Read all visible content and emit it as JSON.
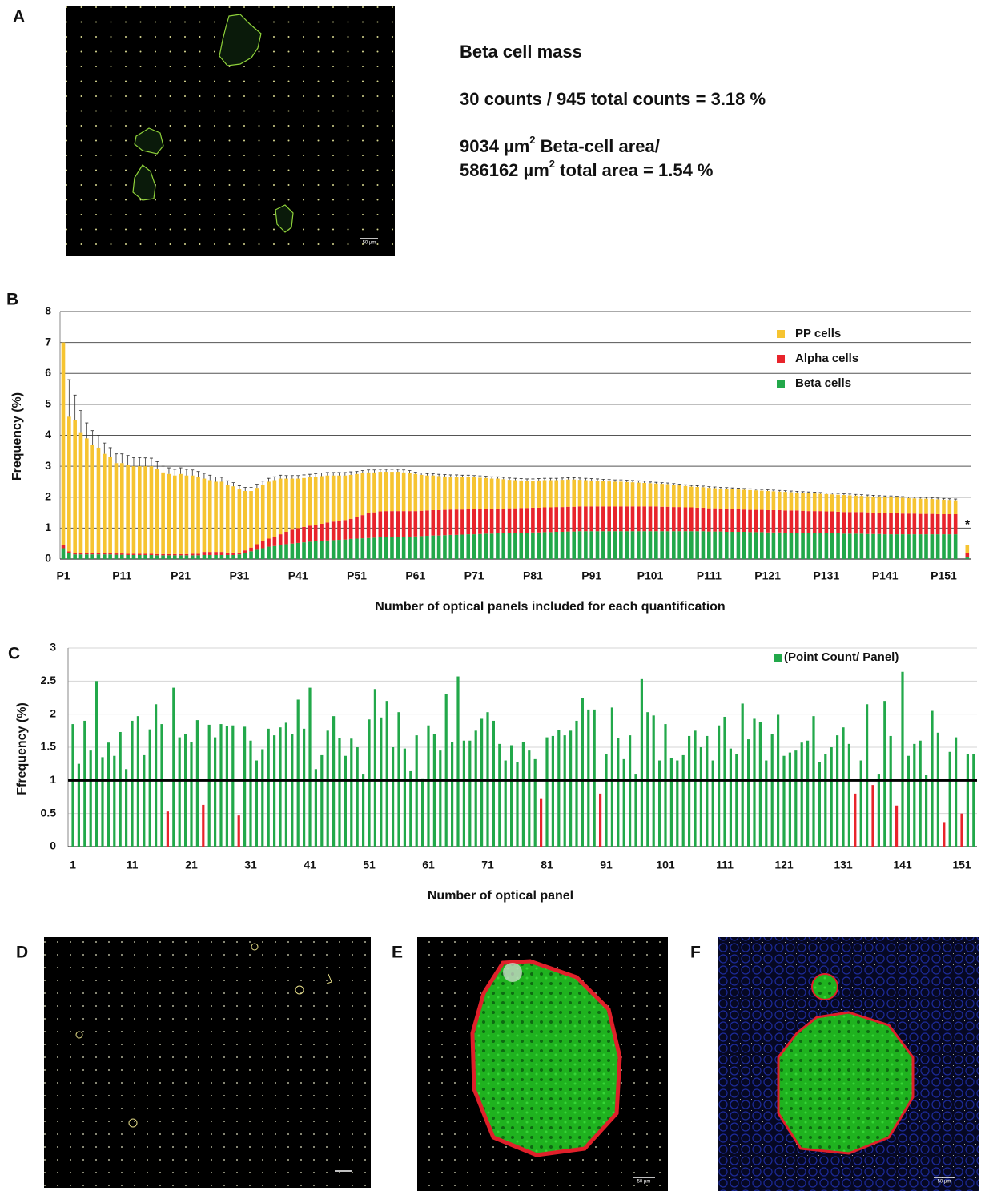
{
  "panel_labels": [
    "A",
    "B",
    "C",
    "D",
    "E",
    "F"
  ],
  "panel_a_text": {
    "heading": "Beta cell mass",
    "count_line": "30 counts / 945 total counts = 3.18 %",
    "area_line_1": {
      "before": "9034 µm",
      "sup": "2",
      "after": " Beta-cell area/"
    },
    "area_line_2": {
      "before": "586162 µm",
      "sup": "2",
      "after": " total area = 1.54 %"
    }
  },
  "scale_bar_label": "50 µm",
  "chart_data": [
    {
      "type": "bar",
      "stacked": true,
      "grid": true,
      "legend": "upper right",
      "ylabel": "Frequency (%)",
      "xlabel": "Number of optical panels included for each quantification",
      "annotation": "*",
      "ylim": [
        0,
        8
      ],
      "yticks": [
        0,
        1,
        2,
        3,
        4,
        5,
        6,
        7,
        8
      ],
      "categories": [
        "P1",
        null,
        null,
        null,
        null,
        null,
        null,
        null,
        null,
        null,
        "P11",
        null,
        null,
        null,
        null,
        null,
        null,
        null,
        null,
        null,
        "P21",
        null,
        null,
        null,
        null,
        null,
        null,
        null,
        null,
        null,
        "P31",
        null,
        null,
        null,
        null,
        null,
        null,
        null,
        null,
        null,
        "P41",
        null,
        null,
        null,
        null,
        null,
        null,
        null,
        null,
        null,
        "P51",
        null,
        null,
        null,
        null,
        null,
        null,
        null,
        null,
        null,
        "P61",
        null,
        null,
        null,
        null,
        null,
        null,
        null,
        null,
        null,
        "P71",
        null,
        null,
        null,
        null,
        null,
        null,
        null,
        null,
        null,
        "P81",
        null,
        null,
        null,
        null,
        null,
        null,
        null,
        null,
        null,
        "P91",
        null,
        null,
        null,
        null,
        null,
        null,
        null,
        null,
        null,
        "P101",
        null,
        null,
        null,
        null,
        null,
        null,
        null,
        null,
        null,
        "P111",
        null,
        null,
        null,
        null,
        null,
        null,
        null,
        null,
        null,
        "P121",
        null,
        null,
        null,
        null,
        null,
        null,
        null,
        null,
        null,
        "P131",
        null,
        null,
        null,
        null,
        null,
        null,
        null,
        null,
        null,
        "P141",
        null,
        null,
        null,
        null,
        null,
        null,
        null,
        null,
        null,
        "P151",
        null,
        null,
        null,
        null
      ],
      "series": [
        {
          "name": "Beta cells",
          "color": "#22a84a",
          "values": [
            0.35,
            0.2,
            0.15,
            0.15,
            0.15,
            0.15,
            0.15,
            0.15,
            0.15,
            0.14,
            0.14,
            0.13,
            0.13,
            0.13,
            0.13,
            0.13,
            0.12,
            0.12,
            0.12,
            0.12,
            0.12,
            0.12,
            0.12,
            0.12,
            0.13,
            0.13,
            0.13,
            0.13,
            0.13,
            0.13,
            0.15,
            0.2,
            0.25,
            0.3,
            0.35,
            0.4,
            0.42,
            0.45,
            0.48,
            0.5,
            0.52,
            0.54,
            0.56,
            0.57,
            0.58,
            0.6,
            0.61,
            0.62,
            0.63,
            0.65,
            0.66,
            0.67,
            0.68,
            0.69,
            0.7,
            0.7,
            0.71,
            0.71,
            0.72,
            0.72,
            0.73,
            0.74,
            0.75,
            0.76,
            0.76,
            0.77,
            0.78,
            0.78,
            0.79,
            0.8,
            0.8,
            0.81,
            0.82,
            0.82,
            0.83,
            0.83,
            0.84,
            0.84,
            0.85,
            0.85,
            0.86,
            0.86,
            0.87,
            0.87,
            0.88,
            0.88,
            0.89,
            0.89,
            0.9,
            0.9,
            0.9,
            0.9,
            0.9,
            0.9,
            0.9,
            0.9,
            0.9,
            0.9,
            0.9,
            0.9,
            0.9,
            0.9,
            0.9,
            0.9,
            0.9,
            0.9,
            0.9,
            0.9,
            0.9,
            0.9,
            0.89,
            0.89,
            0.89,
            0.88,
            0.88,
            0.88,
            0.88,
            0.87,
            0.87,
            0.87,
            0.86,
            0.86,
            0.86,
            0.85,
            0.85,
            0.85,
            0.85,
            0.84,
            0.84,
            0.84,
            0.83,
            0.83,
            0.83,
            0.82,
            0.82,
            0.82,
            0.82,
            0.81,
            0.81,
            0.81,
            0.8,
            0.8,
            0.8,
            0.8,
            0.8,
            0.8,
            0.8,
            0.8,
            0.8,
            0.8,
            0.8,
            0.8,
            0.8,
            null,
            0.05
          ]
        },
        {
          "name": "Alpha cells",
          "color": "#e8242b",
          "values": [
            0.1,
            0.05,
            0.04,
            0.04,
            0.04,
            0.04,
            0.04,
            0.04,
            0.04,
            0.04,
            0.04,
            0.04,
            0.04,
            0.04,
            0.04,
            0.04,
            0.04,
            0.04,
            0.04,
            0.04,
            0.04,
            0.04,
            0.05,
            0.05,
            0.1,
            0.1,
            0.1,
            0.1,
            0.08,
            0.08,
            0.06,
            0.08,
            0.12,
            0.18,
            0.22,
            0.26,
            0.3,
            0.35,
            0.4,
            0.45,
            0.48,
            0.5,
            0.52,
            0.54,
            0.56,
            0.58,
            0.6,
            0.62,
            0.63,
            0.65,
            0.7,
            0.75,
            0.8,
            0.82,
            0.84,
            0.85,
            0.84,
            0.84,
            0.83,
            0.83,
            0.82,
            0.82,
            0.82,
            0.82,
            0.82,
            0.82,
            0.82,
            0.82,
            0.81,
            0.81,
            0.81,
            0.81,
            0.8,
            0.8,
            0.8,
            0.8,
            0.8,
            0.8,
            0.8,
            0.8,
            0.8,
            0.8,
            0.8,
            0.8,
            0.8,
            0.8,
            0.8,
            0.8,
            0.8,
            0.8,
            0.8,
            0.8,
            0.8,
            0.8,
            0.8,
            0.8,
            0.8,
            0.8,
            0.8,
            0.8,
            0.8,
            0.8,
            0.79,
            0.79,
            0.78,
            0.78,
            0.77,
            0.77,
            0.76,
            0.76,
            0.75,
            0.75,
            0.74,
            0.74,
            0.73,
            0.73,
            0.72,
            0.72,
            0.72,
            0.72,
            0.72,
            0.72,
            0.72,
            0.72,
            0.72,
            0.72,
            0.71,
            0.71,
            0.71,
            0.71,
            0.71,
            0.71,
            0.7,
            0.7,
            0.7,
            0.7,
            0.7,
            0.7,
            0.69,
            0.69,
            0.68,
            0.68,
            0.68,
            0.67,
            0.67,
            0.67,
            0.66,
            0.66,
            0.66,
            0.65,
            0.65,
            0.65,
            0.65,
            null,
            0.15
          ]
        },
        {
          "name": "PP cells",
          "color": "#f6c431",
          "values": [
            6.55,
            4.35,
            4.31,
            3.91,
            3.71,
            3.51,
            3.41,
            3.21,
            3.11,
            2.92,
            2.92,
            2.88,
            2.83,
            2.83,
            2.83,
            2.83,
            2.74,
            2.64,
            2.59,
            2.54,
            2.59,
            2.54,
            2.53,
            2.48,
            2.37,
            2.32,
            2.27,
            2.27,
            2.19,
            2.14,
            2.04,
            1.92,
            1.83,
            1.82,
            1.83,
            1.84,
            1.83,
            1.8,
            1.72,
            1.65,
            1.6,
            1.58,
            1.56,
            1.55,
            1.54,
            1.52,
            1.49,
            1.46,
            1.44,
            1.42,
            1.39,
            1.36,
            1.32,
            1.29,
            1.28,
            1.27,
            1.27,
            1.27,
            1.25,
            1.23,
            1.2,
            1.16,
            1.13,
            1.12,
            1.1,
            1.08,
            1.06,
            1.06,
            1.05,
            1.04,
            1.03,
            1.01,
            1.0,
            0.98,
            0.97,
            0.95,
            0.92,
            0.91,
            0.89,
            0.88,
            0.87,
            0.88,
            0.88,
            0.88,
            0.87,
            0.88,
            0.88,
            0.88,
            0.86,
            0.85,
            0.84,
            0.83,
            0.82,
            0.81,
            0.8,
            0.8,
            0.79,
            0.78,
            0.77,
            0.76,
            0.75,
            0.74,
            0.74,
            0.73,
            0.72,
            0.7,
            0.69,
            0.67,
            0.67,
            0.66,
            0.66,
            0.65,
            0.65,
            0.65,
            0.65,
            0.64,
            0.64,
            0.64,
            0.63,
            0.62,
            0.62,
            0.61,
            0.6,
            0.6,
            0.59,
            0.58,
            0.58,
            0.58,
            0.57,
            0.56,
            0.56,
            0.55,
            0.55,
            0.55,
            0.54,
            0.53,
            0.52,
            0.52,
            0.52,
            0.51,
            0.52,
            0.52,
            0.51,
            0.51,
            0.5,
            0.49,
            0.49,
            0.49,
            0.48,
            0.48,
            0.47,
            0.46,
            0.45,
            null,
            0.25
          ],
          "errors": [
            null,
            1.2,
            0.8,
            0.7,
            0.5,
            0.45,
            0.4,
            0.35,
            0.3,
            0.3,
            0.3,
            0.3,
            0.28,
            0.28,
            0.27,
            0.26,
            0.25,
            0.2,
            0.2,
            0.2,
            0.2,
            0.2,
            0.18,
            0.18,
            0.17,
            0.16,
            0.15,
            0.14,
            0.13,
            0.12,
            0.12,
            0.12,
            0.12,
            0.12,
            0.12,
            0.11,
            0.11,
            0.11,
            0.1,
            0.1,
            0.1,
            0.1,
            0.1,
            0.1,
            0.1,
            0.1,
            0.1,
            0.1,
            0.1,
            0.1,
            0.08,
            0.08,
            0.08,
            0.08,
            0.08,
            0.08,
            0.08,
            0.08,
            0.08,
            0.08,
            0.06,
            0.06,
            0.06,
            0.06,
            0.06,
            0.06,
            0.06,
            0.06,
            0.06,
            0.06,
            0.06,
            0.06,
            0.06,
            0.06,
            0.06,
            0.06,
            0.06,
            0.06,
            0.06,
            0.06,
            0.06,
            0.06,
            0.06,
            0.06,
            0.06,
            0.06,
            0.06,
            0.06,
            0.06,
            0.06,
            0.06,
            0.06,
            0.06,
            0.06,
            0.06,
            0.06,
            0.06,
            0.06,
            0.06,
            0.06,
            0.04,
            0.04,
            0.04,
            0.04,
            0.04,
            0.04,
            0.04,
            0.04,
            0.04,
            0.04,
            0.04,
            0.04,
            0.04,
            0.04,
            0.04,
            0.04,
            0.04,
            0.04,
            0.04,
            0.04,
            0.04,
            0.04,
            0.04,
            0.04,
            0.04,
            0.04,
            0.04,
            0.04,
            0.04,
            0.04,
            0.04,
            0.04,
            0.04,
            0.04,
            0.04,
            0.04,
            0.04,
            0.04,
            0.04,
            0.04,
            0.04,
            0.04,
            0.04,
            0.04,
            0.04,
            0.04,
            0.04,
            0.04,
            0.04,
            0.04,
            0.04,
            0.04,
            0.04,
            null,
            null
          ]
        }
      ]
    },
    {
      "type": "bar",
      "stacked": false,
      "grid": true,
      "legend": "upper right",
      "ylabel": "Ffrequency (%)",
      "xlabel": "Number of optical panel",
      "ylim": [
        0,
        3
      ],
      "yticks": [
        0,
        0.5,
        1,
        1.5,
        2,
        2.5,
        3
      ],
      "hline": 1,
      "below_color": "#e8242b",
      "categories": [
        "1",
        null,
        null,
        null,
        null,
        null,
        null,
        null,
        null,
        null,
        "11",
        null,
        null,
        null,
        null,
        null,
        null,
        null,
        null,
        null,
        "21",
        null,
        null,
        null,
        null,
        null,
        null,
        null,
        null,
        null,
        "31",
        null,
        null,
        null,
        null,
        null,
        null,
        null,
        null,
        null,
        "41",
        null,
        null,
        null,
        null,
        null,
        null,
        null,
        null,
        null,
        "51",
        null,
        null,
        null,
        null,
        null,
        null,
        null,
        null,
        null,
        "61",
        null,
        null,
        null,
        null,
        null,
        null,
        null,
        null,
        null,
        "71",
        null,
        null,
        null,
        null,
        null,
        null,
        null,
        null,
        null,
        "81",
        null,
        null,
        null,
        null,
        null,
        null,
        null,
        null,
        null,
        "91",
        null,
        null,
        null,
        null,
        null,
        null,
        null,
        null,
        null,
        "101",
        null,
        null,
        null,
        null,
        null,
        null,
        null,
        null,
        null,
        "111",
        null,
        null,
        null,
        null,
        null,
        null,
        null,
        null,
        null,
        "121",
        null,
        null,
        null,
        null,
        null,
        null,
        null,
        null,
        null,
        "131",
        null,
        null,
        null,
        null,
        null,
        null,
        null,
        null,
        null,
        "141",
        null,
        null,
        null,
        null,
        null,
        null,
        null,
        null,
        null,
        "151",
        null,
        null
      ],
      "series": [
        {
          "name": "(Point Count/ Panel)",
          "color": "#22a84a",
          "values": [
            1.85,
            1.25,
            1.9,
            1.45,
            2.5,
            1.35,
            1.57,
            1.37,
            1.73,
            1.17,
            1.9,
            1.97,
            1.38,
            1.77,
            2.15,
            1.85,
            0.53,
            2.4,
            1.65,
            1.7,
            1.58,
            1.91,
            0.63,
            1.84,
            1.65,
            1.85,
            1.82,
            1.83,
            0.47,
            1.81,
            1.6,
            1.3,
            1.47,
            1.78,
            1.68,
            1.8,
            1.87,
            1.7,
            2.22,
            1.78,
            2.4,
            1.17,
            1.38,
            1.75,
            1.97,
            1.64,
            1.37,
            1.63,
            1.5,
            1.1,
            1.92,
            2.38,
            1.95,
            2.2,
            1.5,
            2.03,
            1.48,
            1.15,
            1.68,
            1.03,
            1.83,
            1.7,
            1.45,
            2.3,
            1.58,
            2.57,
            1.6,
            1.6,
            1.75,
            1.93,
            2.03,
            1.9,
            1.55,
            1.3,
            1.53,
            1.27,
            1.58,
            1.45,
            1.32,
            0.73,
            1.65,
            1.67,
            1.76,
            1.68,
            1.75,
            1.9,
            2.25,
            2.07,
            2.07,
            0.8,
            1.4,
            2.1,
            1.64,
            1.32,
            1.68,
            1.1,
            2.53,
            2.03,
            1.98,
            1.3,
            1.85,
            1.34,
            1.3,
            1.38,
            1.67,
            1.75,
            1.5,
            1.67,
            1.3,
            1.83,
            1.96,
            1.48,
            1.4,
            2.16,
            1.62,
            1.93,
            1.88,
            1.3,
            1.7,
            1.99,
            1.37,
            1.42,
            1.45,
            1.57,
            1.6,
            1.97,
            1.28,
            1.4,
            1.5,
            1.68,
            1.8,
            1.55,
            0.8,
            1.3,
            2.15,
            0.93,
            1.1,
            2.2,
            1.67,
            0.62,
            2.64,
            1.37,
            1.55,
            1.6,
            1.08,
            2.05,
            1.72,
            0.37,
            1.43,
            1.65,
            0.5,
            1.4,
            1.4
          ]
        }
      ]
    }
  ]
}
